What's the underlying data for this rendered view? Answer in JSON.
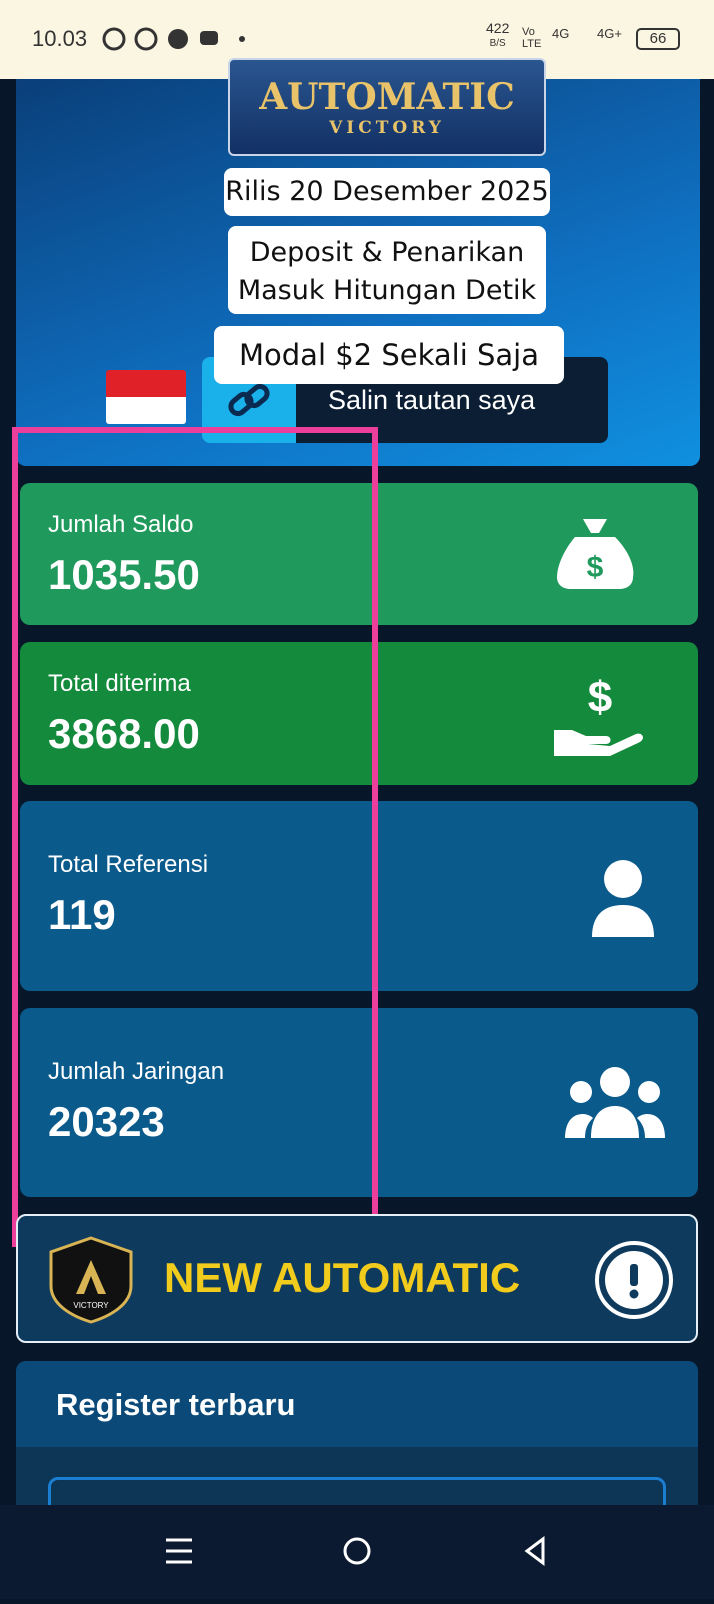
{
  "status_bar": {
    "time": "10.03",
    "speed": "422",
    "speed_unit": "B/S",
    "volte": "Vo LTE",
    "net1": "4G",
    "net2": "4G+",
    "battery": "66"
  },
  "banner": {
    "logo_title": "AUTOMATIC",
    "logo_subtitle": "VICTORY",
    "release": "Rilis 20 Desember 2025",
    "line1": "Deposit & Penarikan",
    "line2": "Masuk Hitungan Detik",
    "modal": "Modal $2 Sekali Saja",
    "copy_link": "Salin tautan saya"
  },
  "cards": [
    {
      "label": "Jumlah Saldo",
      "value": "1035.50"
    },
    {
      "label": "Total diterima",
      "value": "3868.00"
    },
    {
      "label": "Total Referensi",
      "value": "119"
    },
    {
      "label": "Jumlah Jaringan",
      "value": "20323"
    }
  ],
  "promo": {
    "title": "NEW AUTOMATIC",
    "logo_text": "VICTORY"
  },
  "register": {
    "title": "Register terbaru"
  }
}
